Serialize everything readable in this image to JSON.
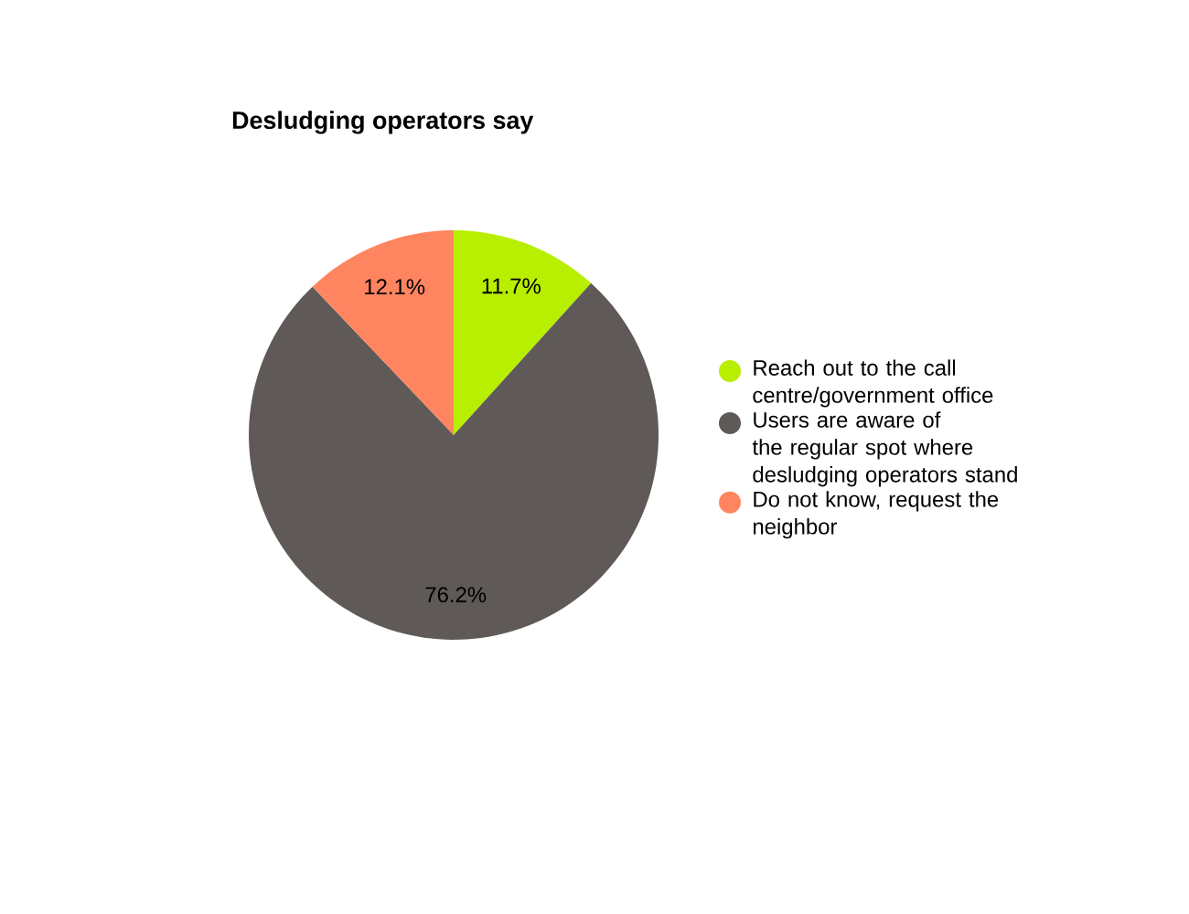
{
  "chart_data": {
    "type": "pie",
    "title": "Desludging operators say",
    "categories": [
      "Reach out to the call centre/government office",
      "Users are aware of the regular spot where desludging operators stand",
      "Do not know, request the neighbor"
    ],
    "values": [
      11.7,
      76.2,
      12.1
    ],
    "colors": [
      "#b8ee00",
      "#5f5a58",
      "#ff8560"
    ],
    "value_labels": [
      "11.7%",
      "76.2%",
      "12.1%"
    ],
    "legend": "right"
  }
}
